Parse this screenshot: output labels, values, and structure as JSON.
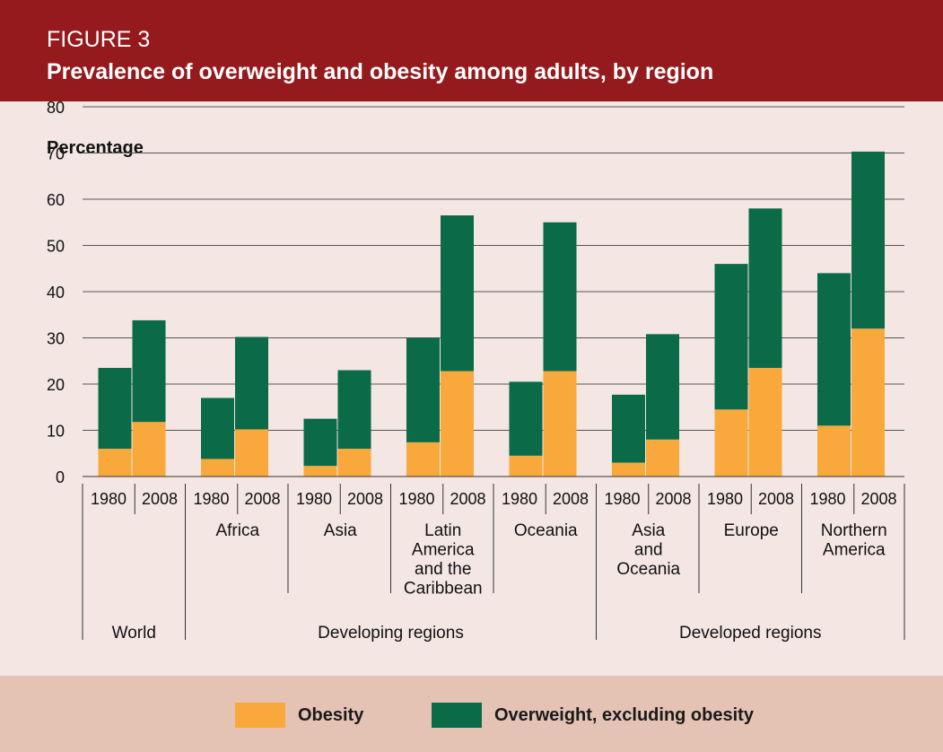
{
  "figure_label": "FIGURE 3",
  "chart_data": {
    "type": "bar",
    "stacked": true,
    "title": "Prevalence of overweight and obesity among adults, by region",
    "ylabel": "Percentage",
    "ylim": [
      0,
      80
    ],
    "yticks": [
      0,
      10,
      20,
      30,
      40,
      50,
      60,
      70,
      80
    ],
    "grid": true,
    "legend_position": "bottom",
    "colors": {
      "Obesity": "#f9a93b",
      "Overweight, excluding obesity": "#0b6a48",
      "header": "#951a1d"
    },
    "groups": [
      {
        "name": "World",
        "label": "World",
        "regions": [
          "World"
        ]
      },
      {
        "name": "Developing regions",
        "label": "Developing regions",
        "regions": [
          "Africa",
          "Asia",
          "Latin America and the Caribbean",
          "Oceania"
        ]
      },
      {
        "name": "Developed regions",
        "label": "Developed regions",
        "regions": [
          "Asia and Oceania",
          "Europe",
          "Northern America"
        ]
      }
    ],
    "regions": [
      {
        "name": "World",
        "label_lines": []
      },
      {
        "name": "Africa",
        "label_lines": [
          "Africa"
        ]
      },
      {
        "name": "Asia",
        "label_lines": [
          "Asia"
        ]
      },
      {
        "name": "Latin America and the Caribbean",
        "label_lines": [
          "Latin",
          "America",
          "and the",
          "Caribbean"
        ]
      },
      {
        "name": "Oceania",
        "label_lines": [
          "Oceania"
        ]
      },
      {
        "name": "Asia and Oceania",
        "label_lines": [
          "Asia",
          "and",
          "Oceania"
        ]
      },
      {
        "name": "Europe",
        "label_lines": [
          "Europe"
        ]
      },
      {
        "name": "Northern America",
        "label_lines": [
          "Northern",
          "America"
        ]
      }
    ],
    "years": [
      "1980",
      "2008"
    ],
    "series": [
      {
        "name": "Obesity",
        "values": [
          6,
          11.8,
          3.8,
          10.2,
          2.3,
          6,
          7.4,
          22.8,
          4.5,
          22.8,
          3,
          8,
          14.5,
          23.5,
          11,
          32
        ]
      },
      {
        "name": "Overweight, excluding obesity",
        "values": [
          17.5,
          22,
          13.2,
          20,
          10.2,
          17,
          22.6,
          33.7,
          16,
          32.2,
          14.7,
          22.8,
          31.5,
          34.5,
          33,
          38.3
        ]
      }
    ]
  }
}
